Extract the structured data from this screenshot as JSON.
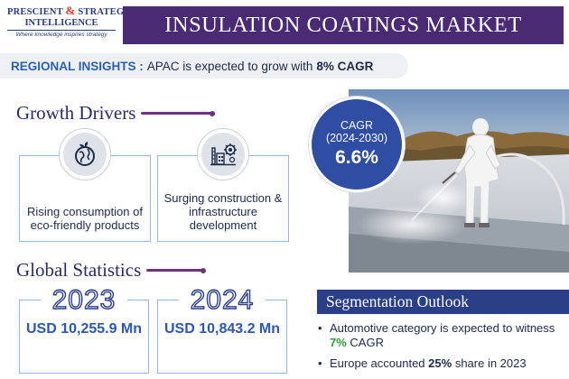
{
  "logo": {
    "line1a": "PRESCIENT",
    "amp": "&",
    "line1b": "STRATEGIC",
    "line2": "INTELLIGENCE",
    "tagline": "Where knowledge inspires strategy"
  },
  "header": {
    "title": "INSULATION COATINGS MARKET"
  },
  "regional": {
    "label": "REGIONAL INSIGHTS :",
    "text": "APAC is expected to grow with",
    "highlight": "8% CAGR"
  },
  "growth_drivers": {
    "heading": "Growth Drivers",
    "items": [
      {
        "text": "Rising consumption of eco-friendly products",
        "icon": "eco-globe-icon"
      },
      {
        "text": "Surging construction & infrastructure development",
        "icon": "construction-gear-icon"
      }
    ]
  },
  "cagr": {
    "label": "CAGR",
    "years": "(2024-2030)",
    "value": "6.6%"
  },
  "global_statistics": {
    "heading": "Global Statistics",
    "items": [
      {
        "year": "2023",
        "value": "USD 10,255.9 Mn"
      },
      {
        "year": "2024",
        "value": "USD 10,843.2 Mn"
      }
    ]
  },
  "segmentation": {
    "title": "Segmentation Outlook",
    "items": [
      {
        "before": "Automotive category is expected to witness",
        "highlight": "7%",
        "after": "CAGR"
      },
      {
        "before": "Europe accounted",
        "highlight": "25%",
        "after": "share in 2023"
      }
    ]
  },
  "colors": {
    "title_bar": "#4a2a72",
    "cagr_badge": "#2f4ea3",
    "segmentation_bar": "#2a3f85",
    "accent_blue": "#2f56b0",
    "accent_green": "#2e9a3a"
  }
}
